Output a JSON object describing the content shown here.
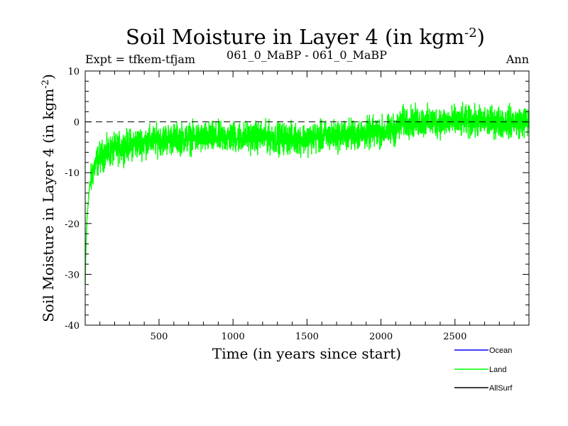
{
  "chart_data": {
    "type": "line",
    "title": "Soil Moisture in Layer 4 (in kgm",
    "title_sup": "-2",
    "title_close": ")",
    "subtitle_left": "Expt = tfkem-tfjam",
    "subtitle_center": "061_0_MaBP - 061_0_MaBP",
    "subtitle_right": "Ann",
    "xlabel": "Time (in years since start)",
    "ylabel": "Soil Moisture in Layer 4 (in kgm",
    "ylabel_sup": "-2",
    "ylabel_close": ")",
    "xlim": [
      1,
      3000
    ],
    "ylim": [
      -40,
      10
    ],
    "xticks": [
      500,
      1000,
      1500,
      2000,
      2500
    ],
    "yticks": [
      -40,
      -30,
      -20,
      -10,
      0,
      10
    ],
    "reference_line": 0,
    "series": [
      {
        "name": "Land",
        "color": "#00ff00",
        "x": [
          1,
          5,
          10,
          20,
          30,
          50,
          75,
          100,
          150,
          200,
          250,
          300,
          400,
          500,
          600,
          700,
          800,
          900,
          1000,
          1100,
          1200,
          1300,
          1400,
          1500,
          1600,
          1700,
          1800,
          1900,
          2000,
          2100,
          2150,
          2200,
          2300,
          2400,
          2500,
          2600,
          2700,
          2800,
          2900,
          3000
        ],
        "y": [
          -32,
          -26,
          -21,
          -16,
          -13,
          -10,
          -8,
          -7,
          -6,
          -5.5,
          -5,
          -4.5,
          -4,
          -3.5,
          -3.3,
          -3.2,
          -3.2,
          -3.1,
          -3,
          -3,
          -3,
          -3.2,
          -3.3,
          -3.3,
          -3,
          -2.7,
          -2.5,
          -2.3,
          -2,
          -1.5,
          0,
          0,
          0,
          0,
          0,
          0,
          0,
          0,
          0,
          0
        ],
        "noise_amplitude": 2.8
      }
    ],
    "legend": [
      {
        "label": "Ocean",
        "color": "#0000ff"
      },
      {
        "label": "Land",
        "color": "#00ff00"
      },
      {
        "label": "AllSurf",
        "color": "#000000"
      }
    ],
    "legend_position": "bottom-right",
    "grid": false
  }
}
